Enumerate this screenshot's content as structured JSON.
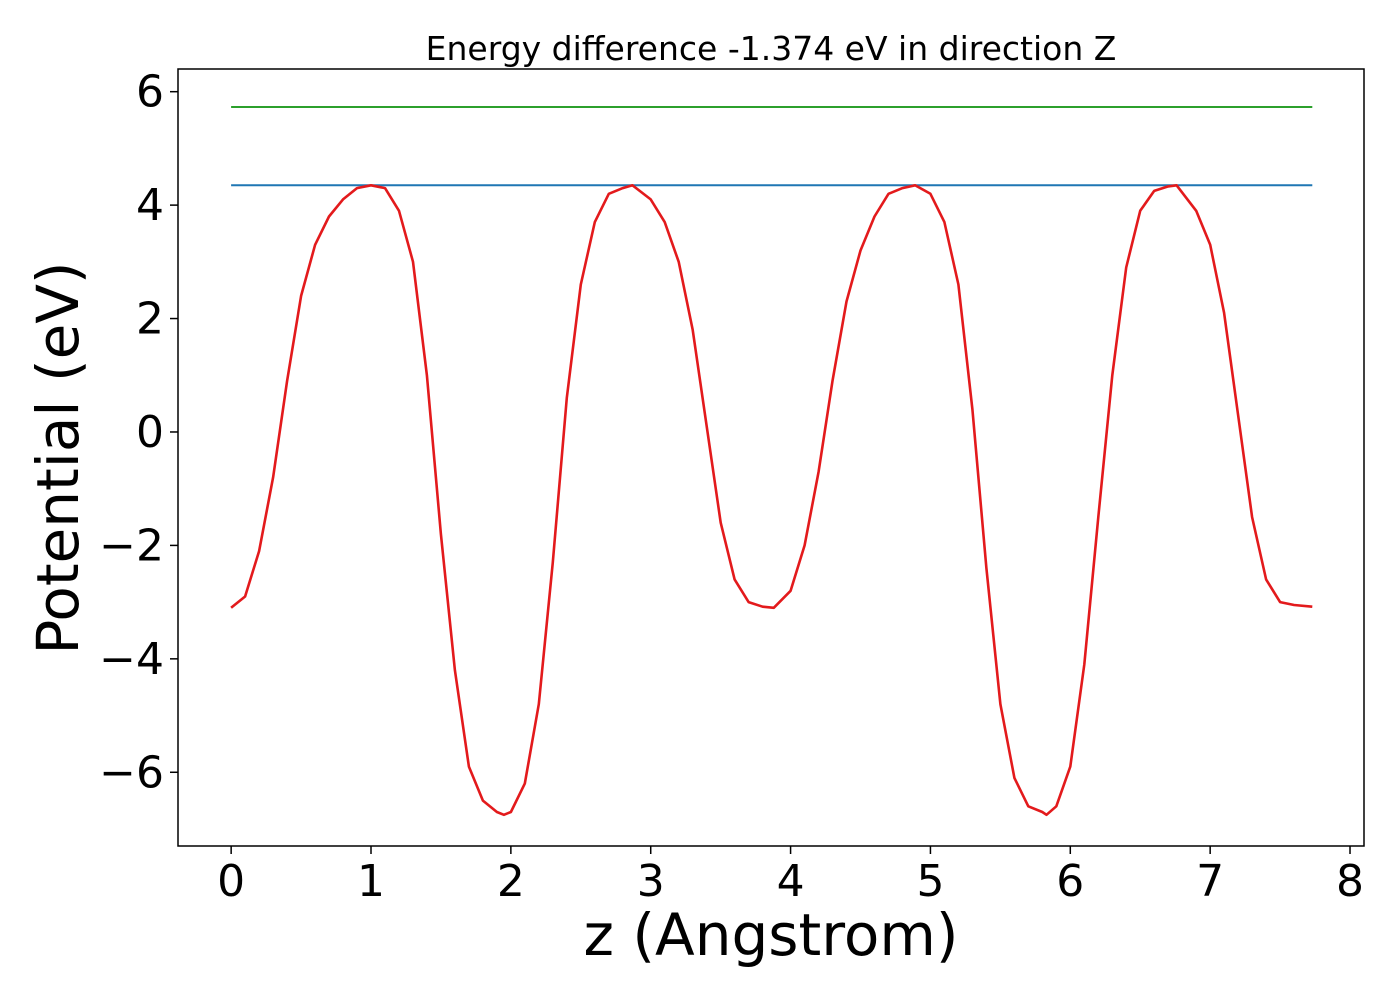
{
  "chart_data": {
    "type": "line",
    "title": "Energy difference -1.374 eV in direction Z",
    "xlabel": "z (Angstrom)",
    "ylabel": "Potential (eV)",
    "xlim": [
      -0.38,
      8.1
    ],
    "ylim": [
      -7.3,
      6.4
    ],
    "x_ticks": [
      0,
      1,
      2,
      3,
      4,
      5,
      6,
      7,
      8
    ],
    "y_ticks": [
      -6,
      -4,
      -2,
      0,
      2,
      4,
      6
    ],
    "y_tick_labels": [
      "−6",
      "−4",
      "−2",
      "0",
      "2",
      "4",
      "6"
    ],
    "grid": false,
    "legend": "none",
    "series": [
      {
        "color": "#2ca02c",
        "x": [
          0,
          7.73
        ],
        "y": [
          5.73,
          5.73
        ]
      },
      {
        "color": "#1f77b4",
        "x": [
          0,
          7.73
        ],
        "y": [
          4.35,
          4.35
        ]
      },
      {
        "color": "#e31a1c",
        "x": [
          0,
          0.1,
          0.2,
          0.3,
          0.4,
          0.5,
          0.6,
          0.7,
          0.8,
          0.9,
          1.0,
          1.1,
          1.2,
          1.3,
          1.4,
          1.5,
          1.6,
          1.7,
          1.8,
          1.9,
          1.95,
          2.0,
          2.1,
          2.2,
          2.3,
          2.4,
          2.5,
          2.6,
          2.7,
          2.8,
          2.87,
          3.0,
          3.1,
          3.2,
          3.3,
          3.4,
          3.5,
          3.6,
          3.7,
          3.8,
          3.88,
          4.0,
          4.1,
          4.2,
          4.3,
          4.4,
          4.5,
          4.6,
          4.7,
          4.8,
          4.89,
          5.0,
          5.1,
          5.2,
          5.3,
          5.4,
          5.5,
          5.6,
          5.7,
          5.8,
          5.83,
          5.9,
          6.0,
          6.1,
          6.2,
          6.3,
          6.4,
          6.5,
          6.6,
          6.7,
          6.76,
          6.9,
          7.0,
          7.1,
          7.2,
          7.3,
          7.4,
          7.5,
          7.6,
          7.73
        ],
        "y": [
          -3.1,
          -2.9,
          -2.1,
          -0.8,
          0.9,
          2.4,
          3.3,
          3.8,
          4.1,
          4.3,
          4.35,
          4.3,
          3.9,
          3.0,
          1.0,
          -1.8,
          -4.2,
          -5.9,
          -6.5,
          -6.7,
          -6.75,
          -6.7,
          -6.2,
          -4.8,
          -2.3,
          0.6,
          2.6,
          3.7,
          4.2,
          4.3,
          4.35,
          4.1,
          3.7,
          3.0,
          1.8,
          0.1,
          -1.6,
          -2.6,
          -3.0,
          -3.08,
          -3.1,
          -2.8,
          -2.0,
          -0.7,
          0.9,
          2.3,
          3.2,
          3.8,
          4.2,
          4.3,
          4.35,
          4.2,
          3.7,
          2.6,
          0.4,
          -2.4,
          -4.8,
          -6.1,
          -6.6,
          -6.7,
          -6.75,
          -6.6,
          -5.9,
          -4.1,
          -1.5,
          1.0,
          2.9,
          3.9,
          4.25,
          4.33,
          4.35,
          3.9,
          3.3,
          2.1,
          0.3,
          -1.5,
          -2.6,
          -3.0,
          -3.05,
          -3.08
        ]
      }
    ]
  }
}
